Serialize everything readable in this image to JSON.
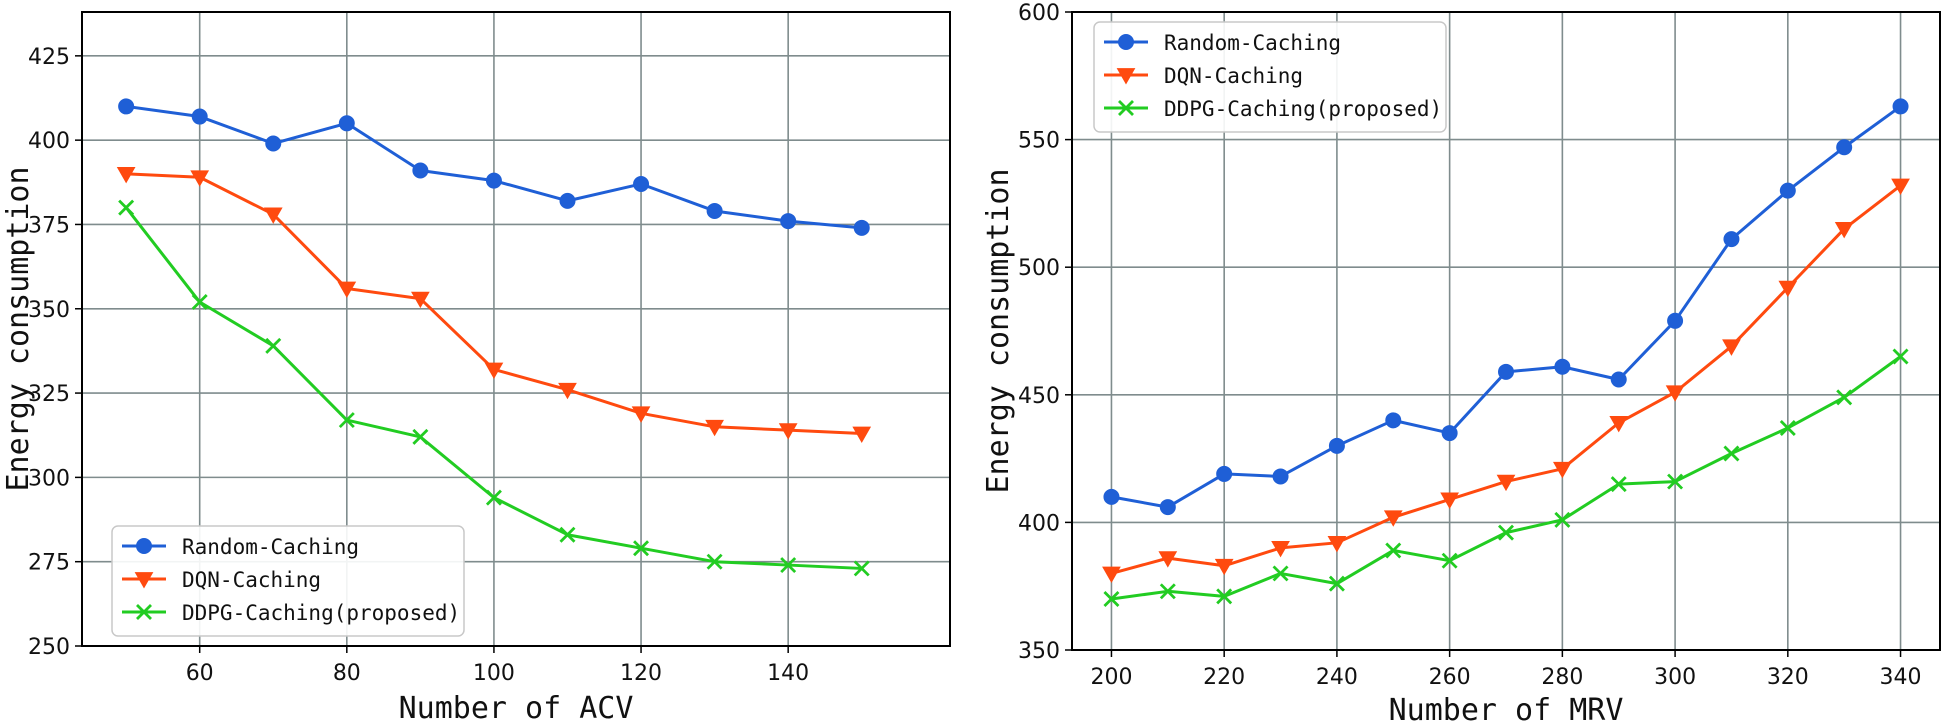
{
  "chart_data": [
    {
      "type": "line",
      "title": "",
      "xlabel": "Number of ACV",
      "ylabel": "Energy consumption",
      "xlim": [
        44,
        162
      ],
      "ylim": [
        250,
        438
      ],
      "xticks": [
        60,
        80,
        100,
        120,
        140
      ],
      "yticks": [
        250,
        275,
        300,
        325,
        350,
        375,
        400,
        425
      ],
      "grid": true,
      "legend_position": "lower-left",
      "x": [
        50,
        60,
        70,
        80,
        90,
        100,
        110,
        120,
        130,
        140,
        150
      ],
      "series": [
        {
          "name": "Random-Caching",
          "color": "#1f5fd6",
          "marker": "circle",
          "values": [
            410,
            407,
            399,
            405,
            391,
            388,
            382,
            387,
            379,
            376,
            374
          ]
        },
        {
          "name": "DQN-Caching",
          "color": "#ff4a0f",
          "marker": "triangle-down",
          "values": [
            390,
            389,
            378,
            356,
            353,
            332,
            326,
            319,
            315,
            314,
            313
          ]
        },
        {
          "name": "DDPG-Caching(proposed)",
          "color": "#22cc22",
          "marker": "x",
          "values": [
            380,
            352,
            339,
            317,
            312,
            294,
            283,
            279,
            275,
            274,
            273
          ]
        }
      ]
    },
    {
      "type": "line",
      "title": "",
      "xlabel": "Number of MRV",
      "ylabel": "Energy consumption",
      "xlim": [
        193,
        347
      ],
      "ylim": [
        350,
        600
      ],
      "xticks": [
        200,
        220,
        240,
        260,
        280,
        300,
        320,
        340
      ],
      "yticks": [
        350,
        400,
        450,
        500,
        550,
        600
      ],
      "grid": true,
      "legend_position": "upper-left",
      "x": [
        200,
        210,
        220,
        230,
        240,
        250,
        260,
        270,
        280,
        290,
        300,
        310,
        320,
        330,
        340
      ],
      "series": [
        {
          "name": "Random-Caching",
          "color": "#1f5fd6",
          "marker": "circle",
          "values": [
            410,
            406,
            419,
            418,
            430,
            440,
            435,
            459,
            461,
            456,
            479,
            511,
            530,
            547,
            563
          ]
        },
        {
          "name": "DQN-Caching",
          "color": "#ff4a0f",
          "marker": "triangle-down",
          "values": [
            380,
            386,
            383,
            390,
            392,
            402,
            409,
            416,
            421,
            439,
            451,
            469,
            492,
            515,
            532
          ]
        },
        {
          "name": "DDPG-Caching(proposed)",
          "color": "#22cc22",
          "marker": "x",
          "values": [
            370,
            373,
            371,
            380,
            376,
            389,
            385,
            396,
            401,
            415,
            416,
            427,
            437,
            449,
            465
          ]
        }
      ]
    }
  ]
}
